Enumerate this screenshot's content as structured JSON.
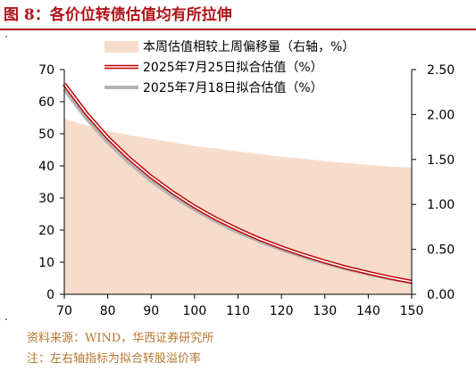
{
  "figure_title": "图 8：各价位转债估值均有所拉伸",
  "source_text": "资料来源：WIND，华西证券研究所",
  "note_text": "注：左右轴指标为拟合转股溢价率",
  "colors": {
    "title": "#b0131a",
    "area": "#f8dccb",
    "line_current": "#c00000",
    "line_previous": "#b4b4b4",
    "footer": "#b5762f"
  },
  "chart_data": {
    "type": "line",
    "x": [
      70,
      75,
      80,
      85,
      90,
      95,
      100,
      105,
      110,
      115,
      120,
      125,
      130,
      135,
      140,
      145,
      150
    ],
    "xlim": [
      70,
      150
    ],
    "x_ticks": [
      70,
      80,
      90,
      100,
      110,
      120,
      130,
      140,
      150
    ],
    "ylim_left": [
      0,
      70
    ],
    "y_ticks_left": [
      "0",
      "10",
      "20",
      "30",
      "40",
      "50",
      "60",
      "70"
    ],
    "ylim_right": [
      0,
      2.5
    ],
    "y_ticks_right": [
      "0.00",
      "0.50",
      "1.00",
      "1.50",
      "2.00",
      "2.50"
    ],
    "grid": false,
    "legend_position": "top-center",
    "series": [
      {
        "name": "本周估值相较上周偏移量（右轴，%）",
        "type": "area",
        "axis": "right",
        "values": [
          1.95,
          1.88,
          1.82,
          1.77,
          1.73,
          1.69,
          1.65,
          1.62,
          1.59,
          1.56,
          1.53,
          1.51,
          1.48,
          1.46,
          1.44,
          1.42,
          1.41
        ]
      },
      {
        "name": "2025年7月25日拟合估值（%）",
        "type": "line",
        "axis": "left",
        "values": [
          65.5,
          56.5,
          48.8,
          42.3,
          36.6,
          31.7,
          27.3,
          23.5,
          20.2,
          17.2,
          14.6,
          12.3,
          10.2,
          8.3,
          6.7,
          5.2,
          3.9
        ]
      },
      {
        "name": "2025年7月18日拟合估值（%）",
        "type": "line",
        "axis": "left",
        "values": [
          63.8,
          54.9,
          47.3,
          40.9,
          35.3,
          30.5,
          26.3,
          22.6,
          19.3,
          16.5,
          13.9,
          11.7,
          9.7,
          7.9,
          6.3,
          4.9,
          3.6
        ]
      }
    ]
  }
}
